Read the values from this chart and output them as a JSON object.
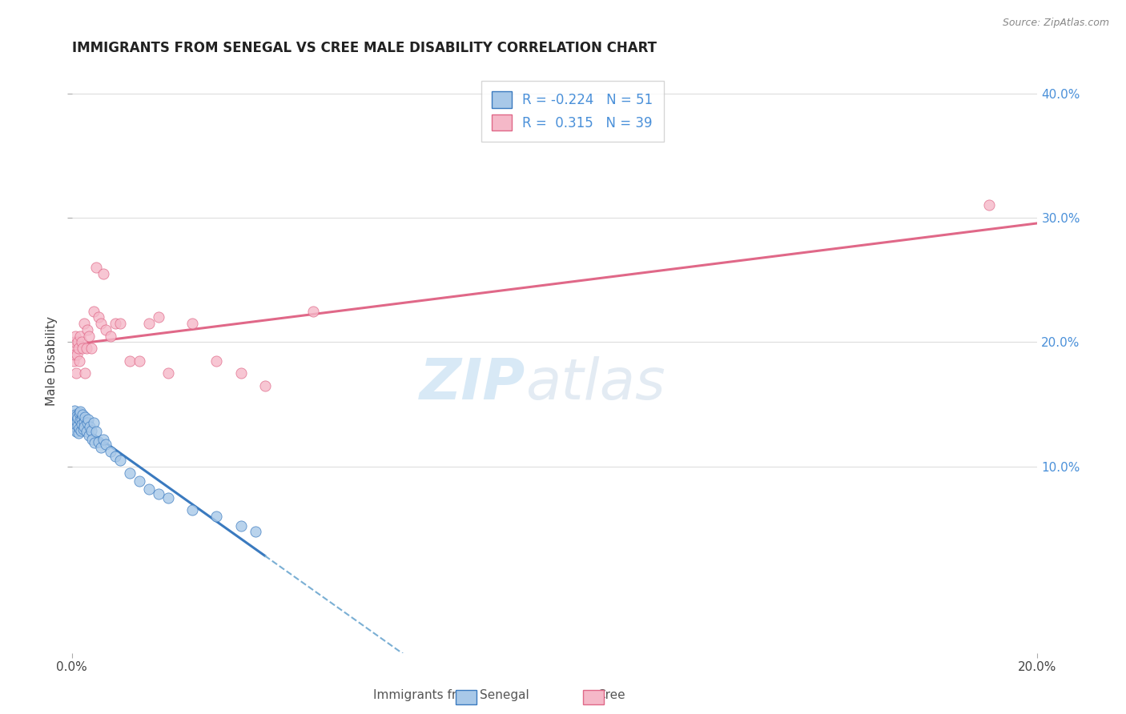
{
  "title": "IMMIGRANTS FROM SENEGAL VS CREE MALE DISABILITY CORRELATION CHART",
  "source": "Source: ZipAtlas.com",
  "ylabel": "Male Disability",
  "xlim": [
    0.0,
    0.2
  ],
  "ylim": [
    -0.05,
    0.42
  ],
  "xtick_vals": [
    0.0,
    0.2
  ],
  "xtick_labels": [
    "0.0%",
    "20.0%"
  ],
  "ytick_vals": [
    0.1,
    0.2,
    0.3,
    0.4
  ],
  "ytick_labels": [
    "10.0%",
    "20.0%",
    "30.0%",
    "40.0%"
  ],
  "blue_R": -0.224,
  "blue_N": 51,
  "pink_R": 0.315,
  "pink_N": 39,
  "blue_color": "#a8c8e8",
  "blue_line_solid_color": "#3a7abf",
  "blue_line_dash_color": "#7aafd4",
  "pink_color": "#f5b8c8",
  "pink_line_color": "#e06888",
  "blue_scatter_x": [
    0.0002,
    0.0003,
    0.0004,
    0.0005,
    0.0006,
    0.0007,
    0.0008,
    0.0009,
    0.001,
    0.0011,
    0.0012,
    0.0013,
    0.0014,
    0.0015,
    0.0016,
    0.0017,
    0.0018,
    0.0019,
    0.002,
    0.0021,
    0.0022,
    0.0024,
    0.0025,
    0.0026,
    0.0028,
    0.003,
    0.0032,
    0.0034,
    0.0036,
    0.0038,
    0.004,
    0.0042,
    0.0045,
    0.0048,
    0.005,
    0.0055,
    0.006,
    0.0065,
    0.007,
    0.008,
    0.009,
    0.01,
    0.012,
    0.014,
    0.016,
    0.018,
    0.02,
    0.025,
    0.03,
    0.035,
    0.038
  ],
  "blue_scatter_y": [
    0.135,
    0.14,
    0.13,
    0.145,
    0.138,
    0.132,
    0.142,
    0.128,
    0.136,
    0.141,
    0.133,
    0.139,
    0.127,
    0.143,
    0.131,
    0.137,
    0.144,
    0.129,
    0.138,
    0.134,
    0.142,
    0.13,
    0.136,
    0.132,
    0.14,
    0.128,
    0.135,
    0.138,
    0.125,
    0.132,
    0.129,
    0.122,
    0.135,
    0.119,
    0.128,
    0.12,
    0.115,
    0.122,
    0.118,
    0.112,
    0.108,
    0.105,
    0.095,
    0.088,
    0.082,
    0.078,
    0.075,
    0.065,
    0.06,
    0.052,
    0.048
  ],
  "pink_scatter_x": [
    0.0002,
    0.0004,
    0.0005,
    0.0006,
    0.0008,
    0.0009,
    0.001,
    0.0012,
    0.0014,
    0.0016,
    0.0018,
    0.002,
    0.0022,
    0.0025,
    0.0028,
    0.003,
    0.0033,
    0.0036,
    0.004,
    0.0045,
    0.005,
    0.0055,
    0.006,
    0.0065,
    0.007,
    0.008,
    0.009,
    0.01,
    0.012,
    0.014,
    0.016,
    0.018,
    0.02,
    0.025,
    0.03,
    0.035,
    0.04,
    0.05,
    0.19
  ],
  "pink_scatter_y": [
    0.195,
    0.185,
    0.2,
    0.19,
    0.205,
    0.175,
    0.19,
    0.2,
    0.195,
    0.185,
    0.205,
    0.2,
    0.195,
    0.215,
    0.175,
    0.195,
    0.21,
    0.205,
    0.195,
    0.225,
    0.26,
    0.22,
    0.215,
    0.255,
    0.21,
    0.205,
    0.215,
    0.215,
    0.185,
    0.185,
    0.215,
    0.22,
    0.175,
    0.215,
    0.185,
    0.175,
    0.165,
    0.225,
    0.31
  ],
  "watermark_zip": "ZIP",
  "watermark_atlas": "atlas",
  "background_color": "#ffffff",
  "grid_color": "#dddddd"
}
